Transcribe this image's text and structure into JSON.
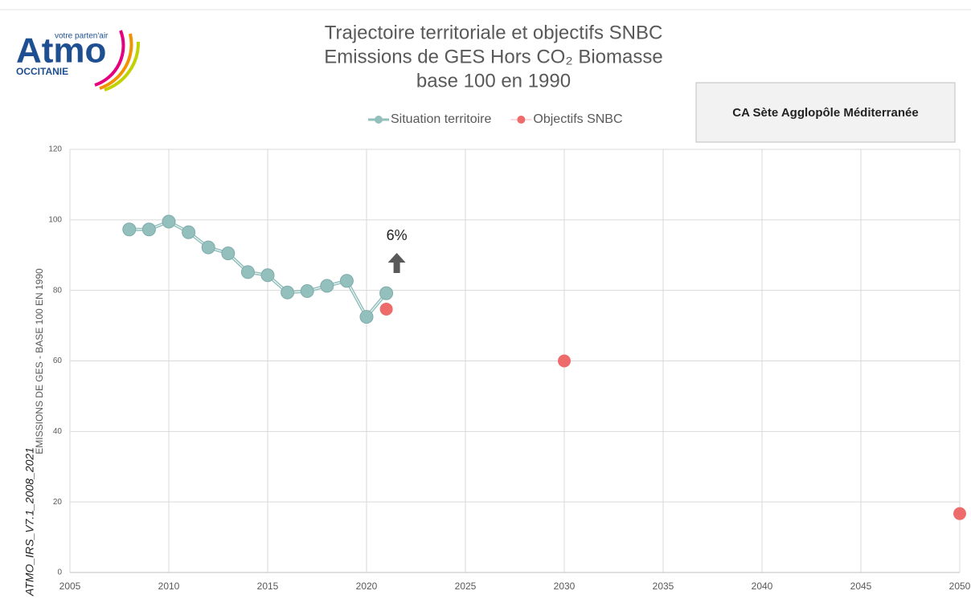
{
  "logo": {
    "name": "Atmo",
    "tagline": "votre parten'air",
    "region": "OCCITANIE"
  },
  "side_label": "ATMO_IRS_V7.1_2008_2021",
  "territory": "CA Sète Agglopôle Méditerranée",
  "chart_data": {
    "type": "line",
    "title": [
      "Trajectoire territoriale et objectifs SNBC",
      "Emissions de GES Hors CO₂ Biomasse",
      "base 100 en 1990"
    ],
    "y_label": "EMISSIONS DE GES - BASE 100 EN 1990",
    "series": [
      {
        "name": "Situation territoire",
        "color": "#93bfbd",
        "line": true,
        "x": [
          2008,
          2009,
          2010,
          2011,
          2012,
          2013,
          2014,
          2015,
          2016,
          2017,
          2018,
          2019,
          2020,
          2021
        ],
        "values": [
          97.3,
          97.3,
          99.5,
          96.5,
          92.2,
          90.5,
          85.2,
          84.3,
          79.4,
          79.8,
          81.3,
          82.7,
          72.5,
          79.2
        ]
      },
      {
        "name": "Objectifs SNBC",
        "color": "#ee6b6b",
        "line": false,
        "x": [
          2021,
          2030,
          2050
        ],
        "values": [
          74.7,
          60,
          16.7
        ]
      }
    ],
    "annotation": {
      "text": "6%",
      "x": 2021
    },
    "xlim": [
      2005,
      2050
    ],
    "xticks": [
      2005,
      2010,
      2015,
      2020,
      2025,
      2030,
      2035,
      2040,
      2045,
      2050
    ],
    "ylim": [
      0,
      120
    ],
    "yticks": [
      0,
      20,
      40,
      60,
      80,
      100,
      120
    ],
    "grid": true
  }
}
